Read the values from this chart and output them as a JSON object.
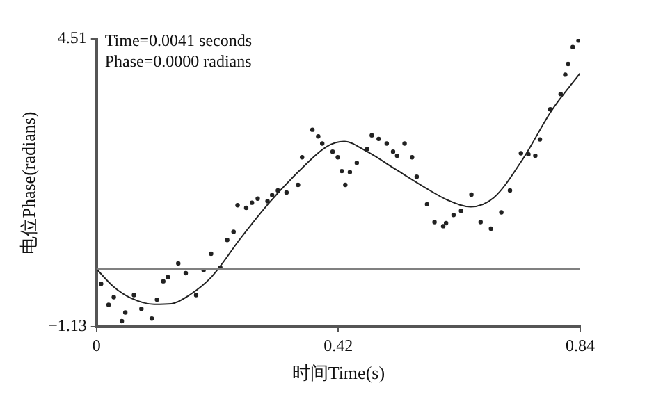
{
  "chart_data": {
    "type": "scatter",
    "xlabel": "时间Time(s)",
    "ylabel": "电位Phase(radians)",
    "annotations": [
      "Time=0.0041 seconds",
      "Phase=0.0000 radians"
    ],
    "xlim": [
      0,
      0.84
    ],
    "xticks": [
      0,
      0.42,
      0.84
    ],
    "ylim": [
      -1.13,
      4.51
    ],
    "yticks": [
      {
        "value": -1.13,
        "label": "−1.13"
      },
      4.51
    ],
    "grid": false,
    "ref_lines": [
      {
        "axis": "y",
        "value": 0,
        "color": "#808080"
      }
    ],
    "series": [
      {
        "color": "#222222",
        "marker": "circle",
        "x": [
          0.008,
          0.021,
          0.03,
          0.044,
          0.05,
          0.065,
          0.078,
          0.096,
          0.105,
          0.116,
          0.124,
          0.142,
          0.155,
          0.173,
          0.186,
          0.199,
          0.215,
          0.227,
          0.238,
          0.245,
          0.26,
          0.27,
          0.28,
          0.297,
          0.305,
          0.315,
          0.33,
          0.35,
          0.357,
          0.375,
          0.385,
          0.392,
          0.41,
          0.419,
          0.426,
          0.432,
          0.44,
          0.452,
          0.47,
          0.478,
          0.49,
          0.504,
          0.515,
          0.522,
          0.535,
          0.548,
          0.556,
          0.574,
          0.587,
          0.602,
          0.607,
          0.62,
          0.633,
          0.651,
          0.667,
          0.685,
          0.703,
          0.718,
          0.737,
          0.75,
          0.762,
          0.77,
          0.788,
          0.806,
          0.814,
          0.819,
          0.827,
          0.837
        ],
        "values": [
          -0.29,
          -0.7,
          -0.55,
          -1.02,
          -0.85,
          -0.51,
          -0.78,
          -0.97,
          -0.6,
          -0.24,
          -0.16,
          0.11,
          -0.08,
          -0.51,
          -0.02,
          0.3,
          0.03,
          0.57,
          0.73,
          1.25,
          1.2,
          1.3,
          1.38,
          1.33,
          1.45,
          1.54,
          1.5,
          1.65,
          2.19,
          2.73,
          2.6,
          2.46,
          2.3,
          2.19,
          1.92,
          1.65,
          1.9,
          2.08,
          2.35,
          2.62,
          2.55,
          2.46,
          2.3,
          2.22,
          2.46,
          2.19,
          1.81,
          1.27,
          0.92,
          0.84,
          0.9,
          1.06,
          1.14,
          1.46,
          0.92,
          0.79,
          1.11,
          1.54,
          2.27,
          2.25,
          2.22,
          2.54,
          3.13,
          3.43,
          3.81,
          4.02,
          4.35,
          4.48
        ]
      },
      {
        "type": "line",
        "color": "#222222",
        "marker": "none",
        "line_style": "solid",
        "x": [
          0,
          0.03,
          0.06,
          0.1,
          0.13,
          0.16,
          0.2,
          0.25,
          0.3,
          0.35,
          0.4,
          0.43,
          0.47,
          0.52,
          0.57,
          0.61,
          0.65,
          0.69,
          0.74,
          0.79,
          0.84
        ],
        "values": [
          0,
          -0.35,
          -0.57,
          -0.69,
          -0.68,
          -0.52,
          -0.15,
          0.6,
          1.3,
          1.9,
          2.4,
          2.5,
          2.3,
          1.95,
          1.6,
          1.35,
          1.22,
          1.4,
          2.15,
          3.1,
          3.84
        ]
      }
    ]
  }
}
